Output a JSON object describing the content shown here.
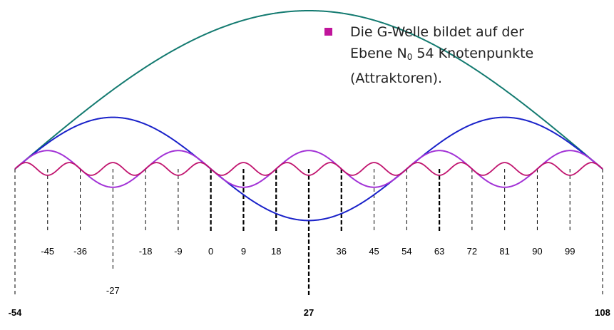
{
  "note": {
    "line1": "Die G-Welle bildet auf der",
    "line2_pre": "Ebene N",
    "line2_sub": "0",
    "line2_post": " 54 Knotenpunkte",
    "line3": "(Attraktoren)."
  },
  "colors": {
    "bullet": "#c0159b",
    "wave_large": "#137a70",
    "wave_blue": "#1a22c9",
    "wave_violet": "#a232d6",
    "wave_magenta": "#c0136e",
    "dashes": "#000000"
  },
  "waves": [
    {
      "name": "wave-large",
      "half_periods": 2,
      "amplitude": 1.0,
      "color_key": "wave_large"
    },
    {
      "name": "wave-blue",
      "half_periods": 6,
      "amplitude": 0.326,
      "color_key": "wave_blue"
    },
    {
      "name": "wave-violet",
      "half_periods": 18,
      "amplitude": 0.116,
      "color_key": "wave_violet"
    },
    {
      "name": "wave-magenta",
      "half_periods": 54,
      "amplitude": 0.04,
      "color_key": "wave_magenta"
    }
  ],
  "ticks": [
    {
      "value": "-54",
      "major": true
    },
    {
      "value": "-45",
      "major": false
    },
    {
      "value": "-36",
      "major": false
    },
    {
      "value": "-27",
      "major": false
    },
    {
      "value": "-18",
      "major": false
    },
    {
      "value": "-9",
      "major": false
    },
    {
      "value": "0",
      "major": false
    },
    {
      "value": "9",
      "major": false
    },
    {
      "value": "18",
      "major": false
    },
    {
      "value": "27",
      "major": true
    },
    {
      "value": "36",
      "major": false
    },
    {
      "value": "45",
      "major": false
    },
    {
      "value": "54",
      "major": false
    },
    {
      "value": "63",
      "major": false
    },
    {
      "value": "72",
      "major": false
    },
    {
      "value": "81",
      "major": false
    },
    {
      "value": "90",
      "major": false
    },
    {
      "value": "99",
      "major": false
    },
    {
      "value": "108",
      "major": true
    }
  ]
}
